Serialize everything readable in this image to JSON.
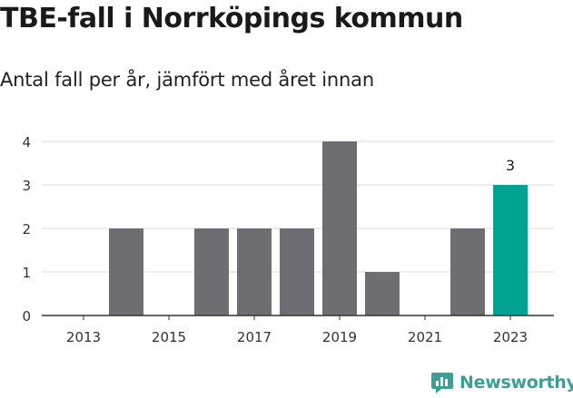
{
  "header": {
    "title": "TBE-fall i Norrköpings kommun",
    "subtitle": "Antal fall per år, jämfört med året innan"
  },
  "brand": {
    "name": "Newsworthy",
    "icon": "newsworthy-logo-icon",
    "color": "#3aa094"
  },
  "chart_data": {
    "type": "bar",
    "categories": [
      "2013",
      "2014",
      "2015",
      "2016",
      "2017",
      "2018",
      "2019",
      "2020",
      "2021",
      "2022",
      "2023"
    ],
    "values": [
      0,
      2,
      0,
      2,
      2,
      2,
      4,
      1,
      0,
      2,
      3
    ],
    "x_tick_labels": [
      "2013",
      "2015",
      "2017",
      "2019",
      "2021",
      "2023"
    ],
    "y_ticks": [
      0,
      1,
      2,
      3,
      4
    ],
    "ylim": [
      0,
      4
    ],
    "grid": true,
    "highlight": {
      "category": "2023",
      "label": "3"
    },
    "colors": {
      "bar": "#6e6d72",
      "highlight": "#00a392",
      "grid": "#d9d9d9",
      "axis": "#333333"
    }
  }
}
